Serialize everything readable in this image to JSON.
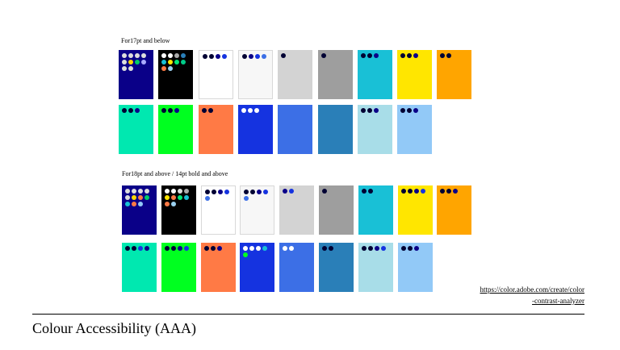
{
  "sections": [
    {
      "title": "For17pt and below",
      "rows": [
        [
          {
            "bg": "#0a0088",
            "dots": [
              "#dddddd",
              "#dddddd",
              "#dddddd",
              "#dddddd",
              "#dddddd",
              "#ffd700",
              "#00cc66",
              "#aaaaff",
              "#dddddd",
              "#dddddd"
            ]
          },
          {
            "bg": "#000000",
            "dots": [
              "#ffffff",
              "#ffffff",
              "#aaaaaa",
              "#2a7fb8",
              "#19c0d6",
              "#ffe600",
              "#00e676",
              "#00cc88",
              "#ff7a45",
              "#9bd0f0"
            ]
          },
          {
            "bg": "#ffffff",
            "border": true,
            "dots": [
              "#000033",
              "#000033",
              "#0a0088",
              "#1533e0"
            ]
          },
          {
            "bg": "#f7f7f7",
            "border": true,
            "dots": [
              "#000033",
              "#0a0088",
              "#1533e0",
              "#3c6fe6"
            ]
          },
          {
            "bg": "#d3d3d3",
            "dots": [
              "#000033"
            ]
          },
          {
            "bg": "#9e9e9e",
            "dots": [
              "#000033"
            ]
          },
          {
            "bg": "#19c0d6",
            "dots": [
              "#000033",
              "#000033",
              "#0a0088"
            ]
          },
          {
            "bg": "#ffe600",
            "dots": [
              "#000033",
              "#000033",
              "#0a0088"
            ]
          },
          {
            "bg": "#ffa500",
            "dots": [
              "#000033",
              "#000033"
            ]
          }
        ],
        [
          {
            "bg": "#00e8b0",
            "dots": [
              "#000033",
              "#000033",
              "#0a0088"
            ]
          },
          {
            "bg": "#00ff20",
            "dots": [
              "#000033",
              "#000033",
              "#0a0088"
            ]
          },
          {
            "bg": "#ff7a45",
            "dots": [
              "#000033",
              "#000033"
            ]
          },
          {
            "bg": "#1533e0",
            "dots": [
              "#ffffff",
              "#ffffff",
              "#ffffff"
            ]
          },
          {
            "bg": "#3c6fe6",
            "dots": []
          },
          {
            "bg": "#2a7fb8",
            "dots": []
          },
          {
            "bg": "#a8dde8",
            "dots": [
              "#000033",
              "#000033",
              "#0a0088"
            ]
          },
          {
            "bg": "#92c9f7",
            "dots": [
              "#000033",
              "#000033",
              "#0a0088"
            ]
          }
        ]
      ]
    },
    {
      "title": "For18pt and above / 14pt bold and above",
      "rows": [
        [
          {
            "bg": "#0a0088",
            "dots": [
              "#dddddd",
              "#dddddd",
              "#dddddd",
              "#dddddd",
              "#dddddd",
              "#ffd700",
              "#ff7a45",
              "#00cc66",
              "#19c0d6",
              "#ff7a45",
              "#92c9f7"
            ]
          },
          {
            "bg": "#000000",
            "dots": [
              "#ffffff",
              "#ffffff",
              "#dddddd",
              "#aaaaaa",
              "#ffe600",
              "#ff7a45",
              "#00e676",
              "#19c0d6",
              "#ff7a45",
              "#9bd0f0"
            ]
          },
          {
            "bg": "#ffffff",
            "border": true,
            "dots": [
              "#000033",
              "#000033",
              "#0a0088",
              "#1533e0",
              "#3c6fe6"
            ]
          },
          {
            "bg": "#f7f7f7",
            "border": true,
            "dots": [
              "#000033",
              "#000033",
              "#0a0088",
              "#1533e0",
              "#3c6fe6"
            ]
          },
          {
            "bg": "#d3d3d3",
            "dots": [
              "#0a0088",
              "#1533e0"
            ]
          },
          {
            "bg": "#9e9e9e",
            "dots": [
              "#000033"
            ]
          },
          {
            "bg": "#19c0d6",
            "dots": [
              "#000033",
              "#000033"
            ]
          },
          {
            "bg": "#ffe600",
            "dots": [
              "#000033",
              "#000033",
              "#0a0088",
              "#1533e0"
            ]
          },
          {
            "bg": "#ffa500",
            "dots": [
              "#000033",
              "#000033",
              "#0a0088"
            ]
          }
        ],
        [
          {
            "bg": "#00e8b0",
            "dots": [
              "#000033",
              "#000033",
              "#1533e0",
              "#0a0088"
            ]
          },
          {
            "bg": "#00ff20",
            "dots": [
              "#000033",
              "#000033",
              "#0a0088",
              "#1533e0"
            ]
          },
          {
            "bg": "#ff7a45",
            "dots": [
              "#000033",
              "#000033",
              "#0a0088"
            ]
          },
          {
            "bg": "#1533e0",
            "dots": [
              "#ffffff",
              "#ffffff",
              "#ffffff",
              "#19c0d6",
              "#00ff20"
            ]
          },
          {
            "bg": "#3c6fe6",
            "dots": [
              "#ffffff",
              "#ffffff"
            ]
          },
          {
            "bg": "#2a7fb8",
            "dots": [
              "#000033",
              "#000033"
            ]
          },
          {
            "bg": "#a8dde8",
            "dots": [
              "#000033",
              "#000033",
              "#0a0088",
              "#1533e0"
            ]
          },
          {
            "bg": "#92c9f7",
            "dots": [
              "#000033",
              "#000033",
              "#0a0088"
            ]
          }
        ]
      ]
    }
  ],
  "source_link": "https://color.adobe.com/create/color-contrast-analyzer",
  "footer_title": "Colour Accessibility (AAA)"
}
